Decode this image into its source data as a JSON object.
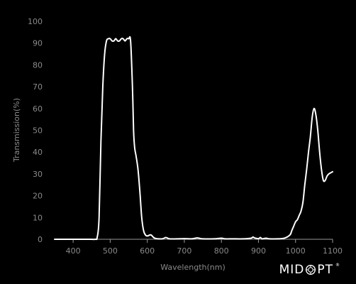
{
  "chart_data": {
    "type": "line",
    "xlabel": "Wavelength(nm)",
    "ylabel": "Transmission(%)",
    "xlim": [
      350,
      1100
    ],
    "ylim": [
      0,
      100
    ],
    "x_ticks": [
      "400",
      "500",
      "600",
      "700",
      "800",
      "900",
      "1000",
      "1100"
    ],
    "y_ticks": [
      "0",
      "10",
      "20",
      "30",
      "40",
      "50",
      "60",
      "70",
      "80",
      "90",
      "100"
    ],
    "grid": false,
    "series": [
      {
        "color": "#ffffff",
        "x": [
          350,
          440,
          460,
          465,
          470,
          475,
          480,
          485,
          490,
          495,
          500,
          505,
          510,
          515,
          520,
          525,
          530,
          535,
          540,
          545,
          550,
          555,
          560,
          563,
          566,
          570,
          575,
          580,
          585,
          590,
          595,
          600,
          610,
          620,
          640,
          650,
          660,
          680,
          700,
          720,
          735,
          750,
          780,
          800,
          810,
          830,
          860,
          880,
          885,
          890,
          900,
          905,
          910,
          920,
          930,
          950,
          970,
          985,
          990,
          995,
          1000,
          1005,
          1010,
          1015,
          1020,
          1025,
          1030,
          1035,
          1040,
          1045,
          1050,
          1055,
          1060,
          1065,
          1070,
          1075,
          1080,
          1085,
          1090,
          1095,
          1100
        ],
        "values": [
          0,
          0,
          0,
          1,
          10,
          45,
          70,
          85,
          91,
          92,
          92,
          91,
          91,
          92,
          91,
          91,
          92,
          92,
          91,
          92,
          92,
          91,
          70,
          50,
          42,
          38,
          32,
          22,
          10,
          4,
          2,
          1.5,
          2,
          0.5,
          0.2,
          0.8,
          0.2,
          0.2,
          0.3,
          0.2,
          0.6,
          0.2,
          0.2,
          0.5,
          0.2,
          0.2,
          0.2,
          0.5,
          1.0,
          0.6,
          0.3,
          0.8,
          0.2,
          0.5,
          0.2,
          0.2,
          0.5,
          2,
          4,
          6,
          8,
          9,
          11,
          13,
          17,
          25,
          32,
          40,
          47,
          56,
          60,
          57,
          50,
          40,
          32,
          27,
          27,
          29,
          30,
          30.5,
          31
        ]
      }
    ]
  },
  "brand": {
    "left": "MID",
    "right": "PT",
    "trademark": "®"
  }
}
